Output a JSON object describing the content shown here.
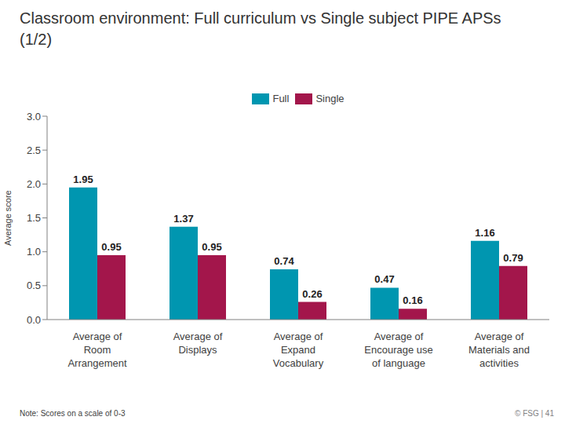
{
  "chart_data": {
    "type": "bar",
    "title": "Classroom environment: Full curriculum vs Single subject PIPE APSs (1/2)",
    "y_label": "Average score",
    "categories": [
      "Average of Room Arrangement",
      "Average of Displays",
      "Average of Expand Vocabulary",
      "Average of Encourage use of language",
      "Average of Materials and activities"
    ],
    "series": [
      {
        "name": "Full",
        "color": "#0096B0",
        "values": [
          1.95,
          1.37,
          0.74,
          0.47,
          1.16
        ]
      },
      {
        "name": "Single",
        "color": "#A3164B",
        "values": [
          0.95,
          0.95,
          0.26,
          0.16,
          0.79
        ]
      }
    ],
    "ylim": [
      0,
      3
    ],
    "yticks": [
      {
        "value": 0,
        "label": "0.0"
      },
      0.5,
      {
        "value": 1,
        "label": "1.0"
      },
      1.5,
      {
        "value": 2,
        "label": "2.0"
      },
      2.5,
      {
        "value": 3,
        "label": "3.0"
      }
    ],
    "grid": false,
    "legend": "top",
    "data_labels": true,
    "note": "Note: Scores on a scale of 0-3",
    "footer": "© FSG | 41"
  }
}
